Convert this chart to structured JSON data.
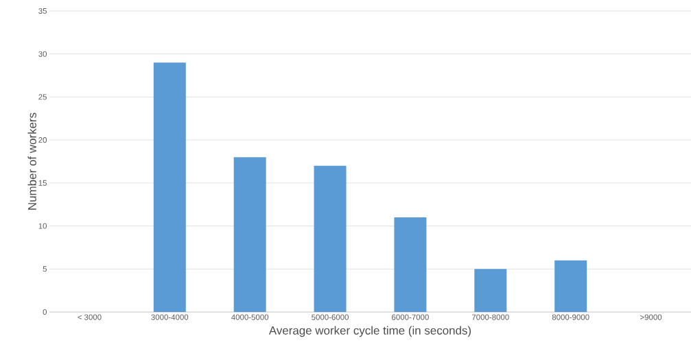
{
  "chart_data": {
    "type": "bar",
    "xlabel": "Average worker cycle time (in seconds)",
    "ylabel": "Number of workers",
    "categories": [
      "< 3000",
      "3000-4000",
      "4000-5000",
      "5000-6000",
      "6000-7000",
      "7000-8000",
      "8000-9000",
      ">9000"
    ],
    "values": [
      0,
      29,
      18,
      17,
      11,
      5,
      6,
      0
    ],
    "color": "#5b9bd5",
    "ylim": [
      0,
      35
    ],
    "yticks": [
      0,
      5,
      10,
      15,
      20,
      25,
      30,
      35
    ],
    "grid": "y"
  }
}
